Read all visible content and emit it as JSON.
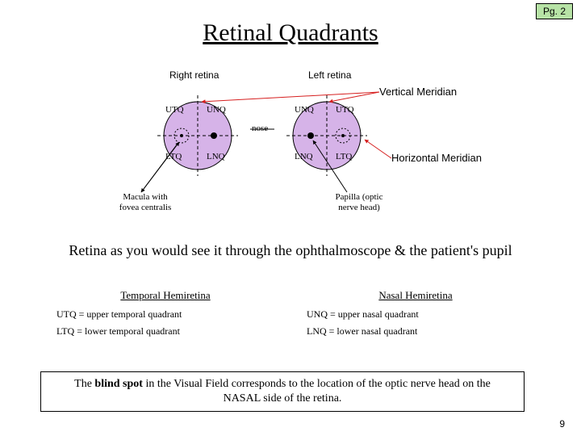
{
  "page_badge": {
    "text": "Pg. 2",
    "bg": "#b7e3a6"
  },
  "title": "Retinal Quadrants",
  "diagram": {
    "retina_fill": "#d6b3e8",
    "macula_fill": "#d6b3e8",
    "stroke": "#000000",
    "dash_color": "#000000",
    "right_label": "Right retina",
    "left_label": "Left retina",
    "nose_label": "nose",
    "vertical_meridian_label": "Vertical Meridian",
    "horizontal_meridian_label": "Horizontal Meridian",
    "arrow_v_color": "#d61f1f",
    "arrow_h_color": "#d61f1f",
    "quadrants": {
      "right": {
        "tl": "UTQ",
        "tr": "UNQ",
        "bl": "LTQ",
        "br": "LNQ"
      },
      "left": {
        "tl": "UNQ",
        "tr": "UTQ",
        "bl": "LNQ",
        "br": "LTQ"
      }
    },
    "macula_caption": "Macula with\nfovea centralis",
    "papilla_caption": "Papilla (optic\nnerve head)"
  },
  "subtitle": "Retina as you would see it through the ophthalmoscope & the patient's pupil",
  "legend": {
    "temporal": {
      "header": "Temporal Hemiretina",
      "utq": "UTQ = upper temporal quadrant",
      "ltq": "LTQ = lower temporal quadrant"
    },
    "nasal": {
      "header": "Nasal Hemiretina",
      "unq": "UNQ = upper nasal quadrant",
      "lnq": "LNQ = lower nasal quadrant"
    }
  },
  "note_pre": "The ",
  "note_bold": "blind spot",
  "note_post": " in the Visual Field corresponds to the location of the optic nerve head on the NASAL side of the retina.",
  "slide_number": "9"
}
